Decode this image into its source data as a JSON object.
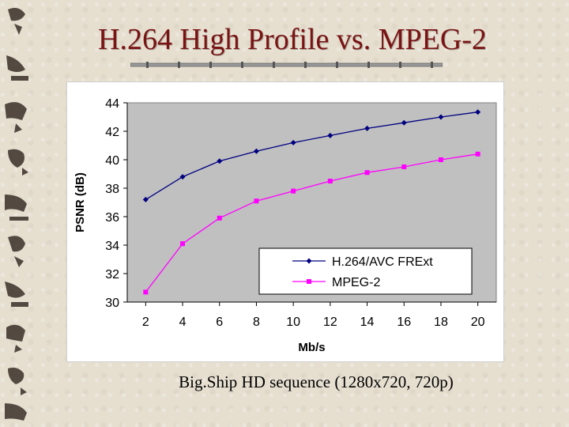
{
  "slide": {
    "title": "H.264 High Profile vs. MPEG-2",
    "caption": "Big.Ship HD sequence (1280x720, 720p)"
  },
  "colors": {
    "title": "#7a1414",
    "plot_bg": "#c0c0c0",
    "h264": "#000080",
    "mpeg2": "#ff00ff"
  },
  "chart_data": {
    "type": "line",
    "title": "",
    "xlabel": "Mb/s",
    "ylabel": "PSNR (dB)",
    "x": [
      2,
      4,
      6,
      8,
      10,
      12,
      14,
      16,
      18,
      20
    ],
    "ylim": [
      30,
      44
    ],
    "yticks": [
      30,
      32,
      34,
      36,
      38,
      40,
      42,
      44
    ],
    "grid": false,
    "legend": "bottom-right",
    "series": [
      {
        "name": "H.264/AVC FRExt",
        "color": "#000080",
        "marker": "diamond",
        "values": [
          37.2,
          38.8,
          39.9,
          40.6,
          41.2,
          41.7,
          42.2,
          42.6,
          43.0,
          43.35
        ]
      },
      {
        "name": "MPEG-2",
        "color": "#ff00ff",
        "marker": "square",
        "values": [
          30.7,
          34.1,
          35.9,
          37.1,
          37.8,
          38.5,
          39.1,
          39.5,
          40.0,
          40.4
        ]
      }
    ]
  }
}
